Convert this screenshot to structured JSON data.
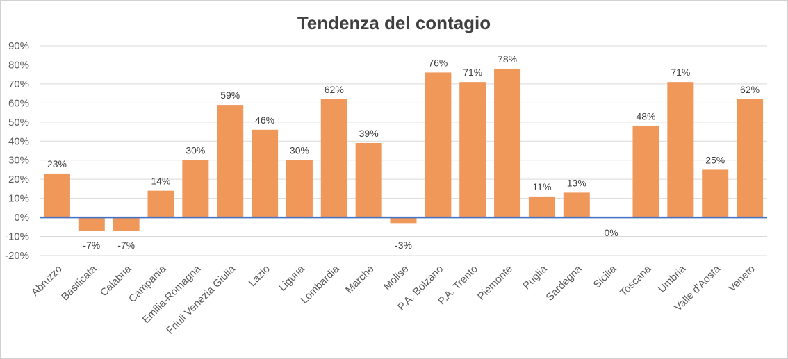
{
  "chart_data": {
    "type": "bar",
    "title": "Tendenza del contagio",
    "xlabel": "",
    "ylabel": "",
    "categories": [
      "Abruzzo",
      "Basilicata",
      "Calabria",
      "Campania",
      "Emilia-Romagna",
      "Friuli Venezia Giulia",
      "Lazio",
      "Liguria",
      "Lombardia",
      "Marche",
      "Molise",
      "P.A. Bolzano",
      "P.A. Trento",
      "Piemonte",
      "Puglia",
      "Sardegna",
      "Sicilia",
      "Toscana",
      "Umbria",
      "Valle d'Aosta",
      "Veneto"
    ],
    "values": [
      23,
      -7,
      -7,
      14,
      30,
      59,
      46,
      30,
      62,
      39,
      -3,
      76,
      71,
      78,
      11,
      13,
      0,
      48,
      71,
      25,
      62
    ],
    "data_labels": [
      "23%",
      "-7%",
      "-7%",
      "14%",
      "30%",
      "59%",
      "46%",
      "30%",
      "62%",
      "39%",
      "-3%",
      "76%",
      "71%",
      "78%",
      "11%",
      "13%",
      "0%",
      "48%",
      "71%",
      "25%",
      "62%"
    ],
    "ylim": [
      -20,
      90
    ],
    "y_ticks": [
      90,
      80,
      70,
      60,
      50,
      40,
      30,
      20,
      10,
      0,
      -10,
      -20
    ],
    "y_tick_labels": [
      "90%",
      "80%",
      "70%",
      "60%",
      "50%",
      "40%",
      "30%",
      "20%",
      "10%",
      "0%",
      "-10%",
      "-20%"
    ],
    "grid": true,
    "legend": "none",
    "colors": {
      "bar": "#F0975A",
      "zero_line": "#4472C4",
      "grid": "#d9d9d9"
    }
  }
}
